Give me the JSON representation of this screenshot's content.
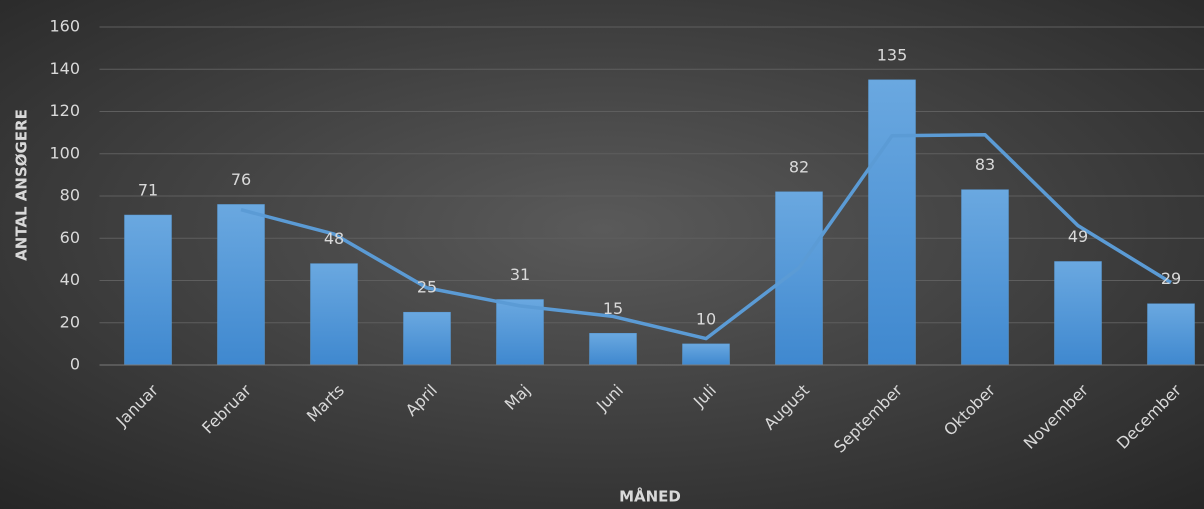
{
  "chart_data": {
    "type": "bar",
    "x_label": "MÅNED",
    "y_label": "ANTAL ANSØGERE",
    "categories": [
      "Januar",
      "Februar",
      "Marts",
      "April",
      "Maj",
      "Juni",
      "Juli",
      "August",
      "September",
      "Oktober",
      "November",
      "December"
    ],
    "series": [
      {
        "type": "bar",
        "color": "#5b9bd5",
        "values": [
          71,
          76,
          48,
          25,
          31,
          15,
          10,
          82,
          135,
          83,
          49,
          29
        ]
      },
      {
        "type": "line",
        "color": "#5b9bd5",
        "values": [
          null,
          73.5,
          62,
          36.5,
          28,
          23,
          12.5,
          46,
          108.5,
          109,
          66,
          39
        ]
      }
    ],
    "ylim": [
      0,
      160
    ],
    "yticks": [
      0,
      20,
      40,
      60,
      80,
      100,
      120,
      140,
      160
    ],
    "grid": true
  }
}
